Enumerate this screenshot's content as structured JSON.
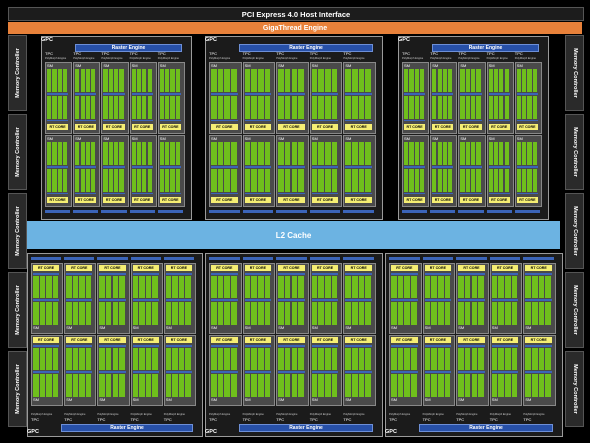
{
  "interface": {
    "pci_label": "PCI Express 4.0 Host Interface",
    "gigathread_label": "GigaThread Engine",
    "l2_label": "L2 Cache"
  },
  "memory_controller_label": "Memory Controller",
  "gpc": {
    "label": "GPC",
    "raster_label": "Raster Engine",
    "tpc_label": "TPC",
    "sm_label": "SM",
    "polymorph_label": "PolyMorph Engine",
    "rt_core_label": "RT CORE"
  },
  "colors": {
    "gigathread": "#e8813a",
    "l2_cache": "#6cb3e2",
    "raster": "#2750a8",
    "cuda_cores": "#6fbf1c",
    "rt_core": "#f5ee73"
  }
}
